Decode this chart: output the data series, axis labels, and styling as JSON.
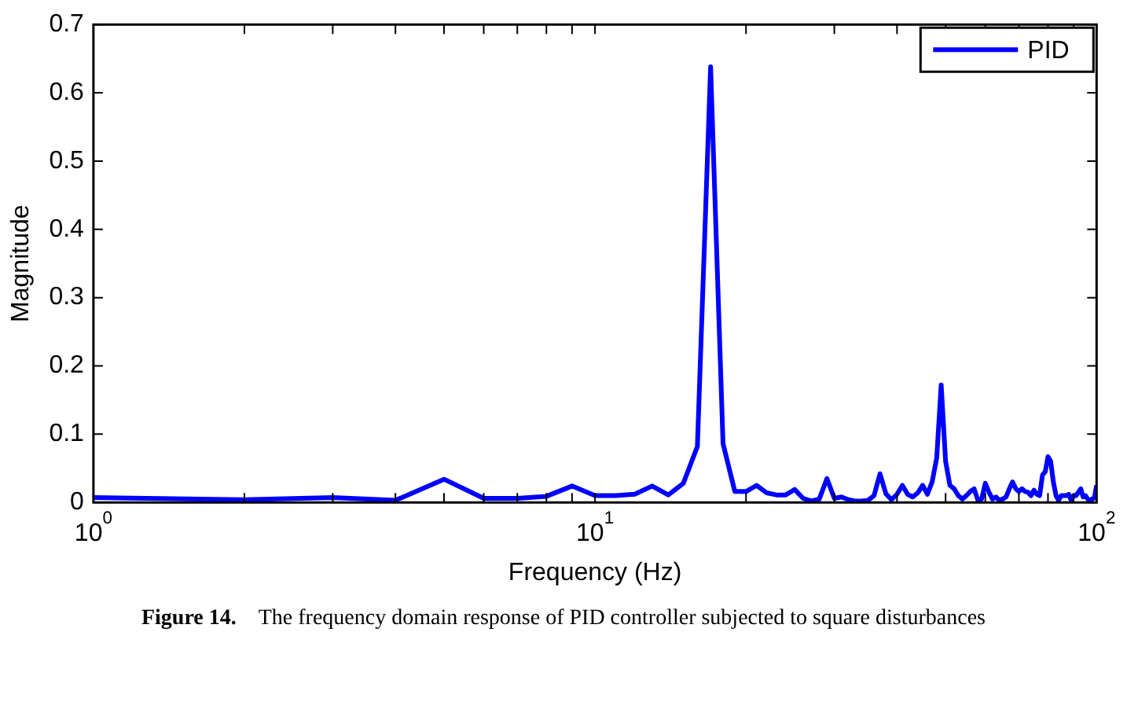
{
  "chart_data": {
    "type": "line",
    "xlabel": "Frequency (Hz)",
    "ylabel": "Magnitude",
    "annotations": [
      "Figure 14. The frequency domain response of PID controller subjected to square disturbances"
    ],
    "x": [
      1,
      2,
      3,
      4,
      5,
      6,
      7,
      8,
      9,
      10,
      11,
      12,
      13,
      14,
      15,
      16,
      17,
      18,
      19,
      20,
      21,
      22,
      23,
      24,
      25,
      26,
      27,
      28,
      29,
      30,
      31,
      32,
      33,
      34,
      35,
      36,
      37,
      38,
      39,
      40,
      41,
      42,
      43,
      44,
      45,
      46,
      47,
      48,
      49,
      50,
      51,
      52,
      53,
      54,
      55,
      56,
      57,
      58,
      59,
      60,
      61,
      62,
      63,
      64,
      65,
      66,
      67,
      68,
      69,
      70,
      71,
      72,
      73,
      74,
      75,
      76,
      77,
      78,
      79,
      80,
      81,
      82,
      83,
      84,
      85,
      86,
      87,
      88,
      89,
      90,
      91,
      92,
      93,
      94,
      95,
      96,
      97,
      98,
      99,
      100
    ],
    "series": [
      {
        "name": "PID",
        "color": "#0000ff",
        "values": [
          0.007,
          0.004,
          0.007,
          0.003,
          0.034,
          0.006,
          0.006,
          0.009,
          0.024,
          0.01,
          0.01,
          0.012,
          0.024,
          0.011,
          0.028,
          0.082,
          0.638,
          0.086,
          0.016,
          0.016,
          0.025,
          0.014,
          0.011,
          0.011,
          0.019,
          0.006,
          0.002,
          0.005,
          0.035,
          0.006,
          0.008,
          0.004,
          0.002,
          0.002,
          0.003,
          0.01,
          0.042,
          0.013,
          0.004,
          0.012,
          0.025,
          0.012,
          0.008,
          0.014,
          0.025,
          0.012,
          0.03,
          0.065,
          0.172,
          0.06,
          0.025,
          0.02,
          0.01,
          0.005,
          0.01,
          0.016,
          0.02,
          0.003,
          0.005,
          0.028,
          0.015,
          0.005,
          0.008,
          0.003,
          0.005,
          0.008,
          0.02,
          0.03,
          0.02,
          0.016,
          0.02,
          0.016,
          0.015,
          0.01,
          0.018,
          0.012,
          0.01,
          0.04,
          0.045,
          0.067,
          0.06,
          0.03,
          0.01,
          0.003,
          0.01,
          0.01,
          0.01,
          0.012,
          0.003,
          0.01,
          0.01,
          0.015,
          0.02,
          0.008,
          0.01,
          0.005,
          0.003,
          0.005,
          0.007,
          0.025
        ]
      }
    ],
    "log": "x",
    "xlim": [
      1,
      100
    ],
    "xticks": [
      {
        "value": 1,
        "label": "10$^{0}$"
      },
      {
        "value": 2,
        "label": null
      },
      {
        "value": 3,
        "label": null
      },
      {
        "value": 4,
        "label": null
      },
      {
        "value": 5,
        "label": null
      },
      {
        "value": 6,
        "label": null
      },
      {
        "value": 7,
        "label": null
      },
      {
        "value": 8,
        "label": null
      },
      {
        "value": 9,
        "label": null
      },
      {
        "value": 10,
        "label": "10$^{1}$"
      },
      {
        "value": 20,
        "label": null
      },
      {
        "value": 30,
        "label": null
      },
      {
        "value": 40,
        "label": null
      },
      {
        "value": 50,
        "label": null
      },
      {
        "value": 60,
        "label": null
      },
      {
        "value": 70,
        "label": null
      },
      {
        "value": 80,
        "label": null
      },
      {
        "value": 90,
        "label": null
      },
      {
        "value": 100,
        "label": "10$^{2}$"
      }
    ],
    "ylim": [
      0,
      0.7
    ],
    "yticks": [
      0,
      0.1,
      0.2,
      0.3,
      0.4,
      0.5,
      0.6,
      0.7
    ],
    "grid": false,
    "legend": "top right",
    "marker": "none",
    "line_style": "solid"
  }
}
